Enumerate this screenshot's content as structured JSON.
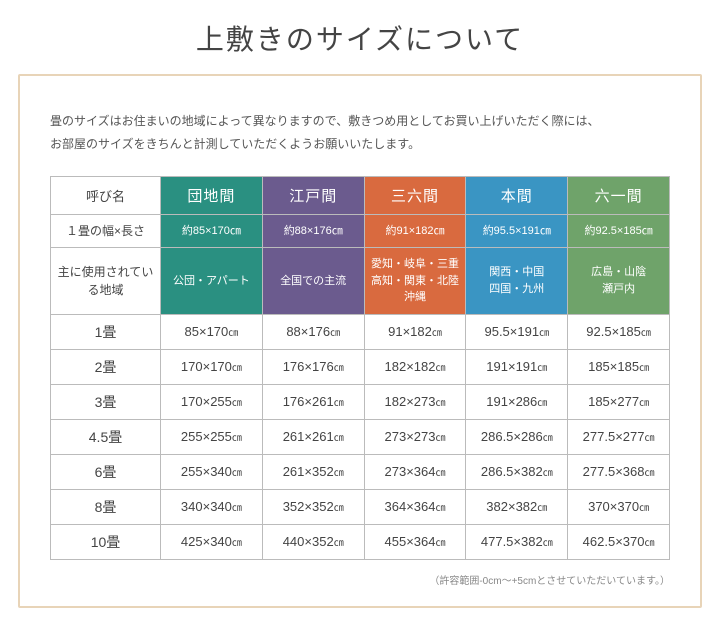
{
  "title": "上敷きのサイズについて",
  "intro_line1": "畳のサイズはお住まいの地域によって異なりますので、敷きつめ用としてお買い上げいただく際には、",
  "intro_line2": "お部屋のサイズをきちんと計測していただくようお願いいたします。",
  "row_headers": {
    "name": "呼び名",
    "one_tatami": "１畳の幅×長さ",
    "region": "主に使用されている地域"
  },
  "columns": [
    {
      "name": "団地間",
      "one": "約85×170㎝",
      "region": "公団・アパート",
      "color": "#2a9081"
    },
    {
      "name": "江戸間",
      "one": "約88×176㎝",
      "region": "全国での主流",
      "color": "#6b5b8e"
    },
    {
      "name": "三六間",
      "one": "約91×182㎝",
      "region": "愛知・岐阜・三重\n高知・関東・北陸\n沖縄",
      "color": "#d96a3f"
    },
    {
      "name": "本間",
      "one": "約95.5×191㎝",
      "region": "関西・中国\n四国・九州",
      "color": "#3a95c3"
    },
    {
      "name": "六一間",
      "one": "約92.5×185㎝",
      "region": "広島・山陰\n瀬戸内",
      "color": "#6fa36a"
    }
  ],
  "sizes": [
    {
      "label": "1畳",
      "cells": [
        "85×170㎝",
        "88×176㎝",
        "91×182㎝",
        "95.5×191㎝",
        "92.5×185㎝"
      ]
    },
    {
      "label": "2畳",
      "cells": [
        "170×170㎝",
        "176×176㎝",
        "182×182㎝",
        "191×191㎝",
        "185×185㎝"
      ]
    },
    {
      "label": "3畳",
      "cells": [
        "170×255㎝",
        "176×261㎝",
        "182×273㎝",
        "191×286㎝",
        "185×277㎝"
      ]
    },
    {
      "label": "4.5畳",
      "cells": [
        "255×255㎝",
        "261×261㎝",
        "273×273㎝",
        "286.5×286㎝",
        "277.5×277㎝"
      ]
    },
    {
      "label": "6畳",
      "cells": [
        "255×340㎝",
        "261×352㎝",
        "273×364㎝",
        "286.5×382㎝",
        "277.5×368㎝"
      ]
    },
    {
      "label": "8畳",
      "cells": [
        "340×340㎝",
        "352×352㎝",
        "364×364㎝",
        "382×382㎝",
        "370×370㎝"
      ]
    },
    {
      "label": "10畳",
      "cells": [
        "425×340㎝",
        "440×352㎝",
        "455×364㎝",
        "477.5×382㎝",
        "462.5×370㎝"
      ]
    }
  ],
  "tolerance": "（許容範囲-0cm～+5cmとさせていただいています。）",
  "style": {
    "header_sub_text_color": "#ffffff",
    "border_color": "#bbbbbb",
    "frame_border_color": "#e8d4b8"
  }
}
